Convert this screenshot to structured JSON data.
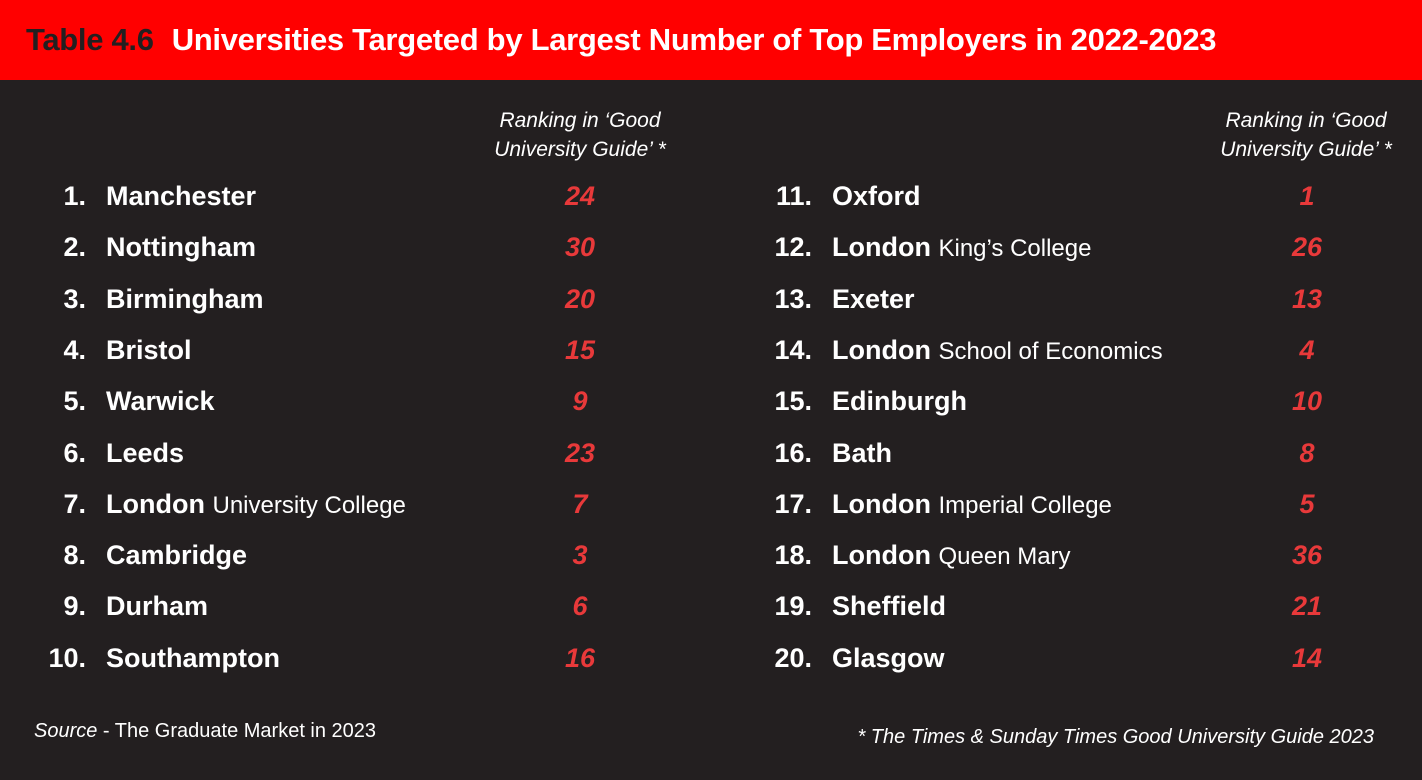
{
  "header": {
    "table_number": "Table 4.6",
    "title": "Universities Targeted by Largest Number of Top Employers in 2022-2023"
  },
  "column_header": {
    "line1": "Ranking in ‘Good",
    "line2": "University Guide’ *"
  },
  "left_rows": [
    {
      "rank": "1.",
      "name": "Manchester",
      "sub": "",
      "guide": "24"
    },
    {
      "rank": "2.",
      "name": "Nottingham",
      "sub": "",
      "guide": "30"
    },
    {
      "rank": "3.",
      "name": "Birmingham",
      "sub": "",
      "guide": "20"
    },
    {
      "rank": "4.",
      "name": "Bristol",
      "sub": "",
      "guide": "15"
    },
    {
      "rank": "5.",
      "name": "Warwick",
      "sub": "",
      "guide": "9"
    },
    {
      "rank": "6.",
      "name": "Leeds",
      "sub": "",
      "guide": "23"
    },
    {
      "rank": "7.",
      "name": "London",
      "sub": "University College",
      "guide": "7"
    },
    {
      "rank": "8.",
      "name": "Cambridge",
      "sub": "",
      "guide": "3"
    },
    {
      "rank": "9.",
      "name": "Durham",
      "sub": "",
      "guide": "6"
    },
    {
      "rank": "10.",
      "name": "Southampton",
      "sub": "",
      "guide": "16"
    }
  ],
  "right_rows": [
    {
      "rank": "11.",
      "name": "Oxford",
      "sub": "",
      "guide": "1"
    },
    {
      "rank": "12.",
      "name": "London",
      "sub": "King’s College",
      "guide": "26"
    },
    {
      "rank": "13.",
      "name": "Exeter",
      "sub": "",
      "guide": "13"
    },
    {
      "rank": "14.",
      "name": "London",
      "sub": "School of Economics",
      "guide": "4"
    },
    {
      "rank": "15.",
      "name": "Edinburgh",
      "sub": "",
      "guide": "10"
    },
    {
      "rank": "16.",
      "name": "Bath",
      "sub": "",
      "guide": "8"
    },
    {
      "rank": "17.",
      "name": "London",
      "sub": "Imperial College",
      "guide": "5"
    },
    {
      "rank": "18.",
      "name": "London",
      "sub": "Queen Mary",
      "guide": "36"
    },
    {
      "rank": "19.",
      "name": "Sheffield",
      "sub": "",
      "guide": "21"
    },
    {
      "rank": "20.",
      "name": "Glasgow",
      "sub": "",
      "guide": "14"
    }
  ],
  "footer": {
    "source_label": "Source",
    "source_text": " - The Graduate Market in 2023",
    "note": "* The Times & Sunday Times Good University Guide 2023"
  },
  "colors": {
    "header_bg": "#ff0000",
    "background": "#231f20",
    "guide_rank": "#e8393a"
  }
}
